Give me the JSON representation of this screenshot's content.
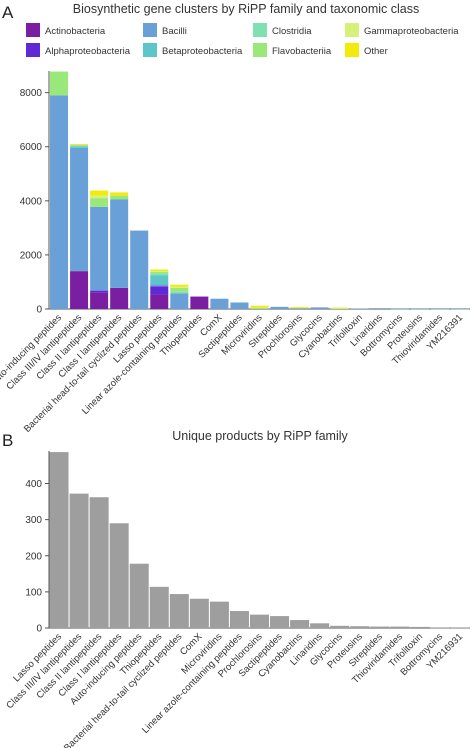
{
  "chart_data": [
    {
      "panel": "A",
      "type": "bar",
      "stacked": true,
      "title": "Biosynthetic gene clusters by RiPP family and taxonomic class",
      "xlabel": "",
      "ylabel": "",
      "ylim": [
        0,
        8800
      ],
      "yticks": [
        0,
        2000,
        4000,
        6000,
        8000
      ],
      "grid": false,
      "legend_position": "top",
      "categories": [
        "Auto-inducing peptides",
        "Class III/IV lantipeptides",
        "Class II lantipeptides",
        "Class I lantipeptides",
        "Bacterial head-to-tail cyclized peptides",
        "Lasso peptides",
        "Linear azole-containing peptides",
        "Thiopeptides",
        "ComX",
        "Sactipeptides",
        "Microviridins",
        "Streptides",
        "Prochlorosins",
        "Glycocins",
        "Cyanobactins",
        "Trifolitoxin",
        "Linaridins",
        "Bottromycins",
        "Proteusins",
        "Thioviridamides",
        "YM216391"
      ],
      "series": [
        {
          "name": "Actinobacteria",
          "color": "#7b1fa2",
          "values": [
            0,
            1400,
            620,
            780,
            0,
            540,
            0,
            460,
            0,
            0,
            0,
            0,
            0,
            0,
            0,
            0,
            0,
            0,
            0,
            0,
            0
          ]
        },
        {
          "name": "Alphaproteobacteria",
          "color": "#5e2ad6",
          "values": [
            0,
            0,
            60,
            0,
            0,
            300,
            0,
            0,
            0,
            0,
            0,
            0,
            0,
            0,
            0,
            0,
            0,
            0,
            0,
            0,
            0
          ]
        },
        {
          "name": "Bacilli",
          "color": "#6aa0d8",
          "values": [
            7900,
            4560,
            3100,
            3280,
            2900,
            80,
            580,
            0,
            380,
            240,
            0,
            80,
            30,
            60,
            0,
            20,
            30,
            10,
            8,
            5,
            5
          ]
        },
        {
          "name": "Betaproteobacteria",
          "color": "#5cc6c8",
          "values": [
            0,
            60,
            0,
            0,
            0,
            320,
            0,
            0,
            0,
            0,
            0,
            0,
            0,
            0,
            0,
            0,
            0,
            0,
            0,
            0,
            0
          ]
        },
        {
          "name": "Clostridia",
          "color": "#7fe0b0",
          "values": [
            0,
            0,
            0,
            0,
            0,
            80,
            60,
            0,
            0,
            0,
            0,
            0,
            0,
            0,
            0,
            0,
            0,
            0,
            0,
            0,
            0
          ]
        },
        {
          "name": "Flavobacteriia",
          "color": "#9be87a",
          "values": [
            880,
            40,
            320,
            130,
            0,
            60,
            140,
            0,
            0,
            0,
            40,
            0,
            0,
            0,
            20,
            0,
            0,
            0,
            0,
            0,
            0
          ]
        },
        {
          "name": "Gammaproteobacteria",
          "color": "#d6f07a",
          "values": [
            0,
            20,
            100,
            0,
            0,
            20,
            40,
            0,
            0,
            0,
            20,
            0,
            0,
            0,
            10,
            0,
            0,
            0,
            0,
            0,
            0
          ]
        },
        {
          "name": "Other",
          "color": "#f2ea0a",
          "values": [
            0,
            20,
            180,
            120,
            0,
            60,
            80,
            0,
            0,
            0,
            60,
            0,
            40,
            0,
            20,
            0,
            0,
            0,
            0,
            0,
            0
          ]
        }
      ]
    },
    {
      "panel": "B",
      "type": "bar",
      "stacked": false,
      "title": "Unique products by RiPP family",
      "xlabel": "",
      "ylabel": "",
      "ylim": [
        0,
        490
      ],
      "yticks": [
        0,
        100,
        200,
        300,
        400
      ],
      "grid": false,
      "bar_color": "#9e9e9e",
      "categories": [
        "Lasso peptides",
        "Class III/IV lantipeptides",
        "Class II lantipeptides",
        "Class I lantipeptides",
        "Auto-inducing peptides",
        "Thiopeptides",
        "Bacterial head-to-tail cyclized peptides",
        "ComX",
        "Microviridins",
        "Linear azole-containing peptides",
        "Prochlorosins",
        "Sactipeptides",
        "Cyanobactins",
        "Linaridins",
        "Glycocins",
        "Proteusins",
        "Streptides",
        "Thioviridamides",
        "Trifolitoxin",
        "Bottromycins",
        "YM216931"
      ],
      "values": [
        487,
        372,
        362,
        290,
        178,
        114,
        94,
        81,
        73,
        47,
        37,
        33,
        22,
        13,
        6,
        5,
        4,
        4,
        3,
        1,
        1
      ]
    }
  ]
}
